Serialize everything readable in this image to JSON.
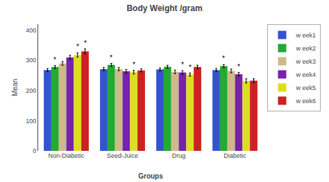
{
  "chart_data": {
    "type": "bar",
    "title": "Body Weight /gram",
    "xlabel": "Groups",
    "ylabel": "Mean",
    "categories": [
      "Non-Diabetic",
      "Seed-Juice",
      "Drug",
      "Diabetic"
    ],
    "series": [
      {
        "name": "w eek1",
        "color": "#3355cc",
        "values": [
          268,
          271,
          270,
          268
        ],
        "errors": [
          5,
          5,
          5,
          5
        ]
      },
      {
        "name": "w eek2",
        "color": "#22aa33",
        "values": [
          278,
          285,
          279,
          281
        ],
        "errors": [
          5,
          5,
          5,
          5
        ]
      },
      {
        "name": "w eek3",
        "color": "#ccbb88",
        "values": [
          290,
          271,
          262,
          265
        ],
        "errors": [
          6,
          5,
          6,
          6
        ]
      },
      {
        "name": "w eek4",
        "color": "#7722aa",
        "values": [
          310,
          264,
          260,
          254
        ],
        "errors": [
          7,
          6,
          6,
          6
        ]
      },
      {
        "name": "w eek5",
        "color": "#dddd22",
        "values": [
          318,
          261,
          253,
          232
        ],
        "errors": [
          7,
          6,
          5,
          7
        ]
      },
      {
        "name": "w eek6",
        "color": "#cc2222",
        "values": [
          330,
          267,
          278,
          233
        ],
        "errors": [
          8,
          5,
          6,
          6
        ]
      }
    ],
    "annotations": [
      {
        "category": "Non-Diabetic",
        "series": "w eek2",
        "text": "*"
      },
      {
        "category": "Non-Diabetic",
        "series": "w eek5",
        "text": "*"
      },
      {
        "category": "Non-Diabetic",
        "series": "w eek6",
        "text": "*"
      },
      {
        "category": "Seed-Juice",
        "series": "w eek2",
        "text": "*"
      },
      {
        "category": "Seed-Juice",
        "series": "w eek5",
        "text": "*"
      },
      {
        "category": "Drug",
        "series": "w eek4",
        "text": "*"
      },
      {
        "category": "Drug",
        "series": "w eek5",
        "text": "*"
      },
      {
        "category": "Diabetic",
        "series": "w eek2",
        "text": "*"
      },
      {
        "category": "Diabetic",
        "series": "w eek4",
        "text": "*"
      }
    ],
    "ylim": [
      0,
      420
    ],
    "yticks": [
      0,
      100,
      200,
      300,
      400
    ],
    "grid": false,
    "legend": "upper right"
  }
}
